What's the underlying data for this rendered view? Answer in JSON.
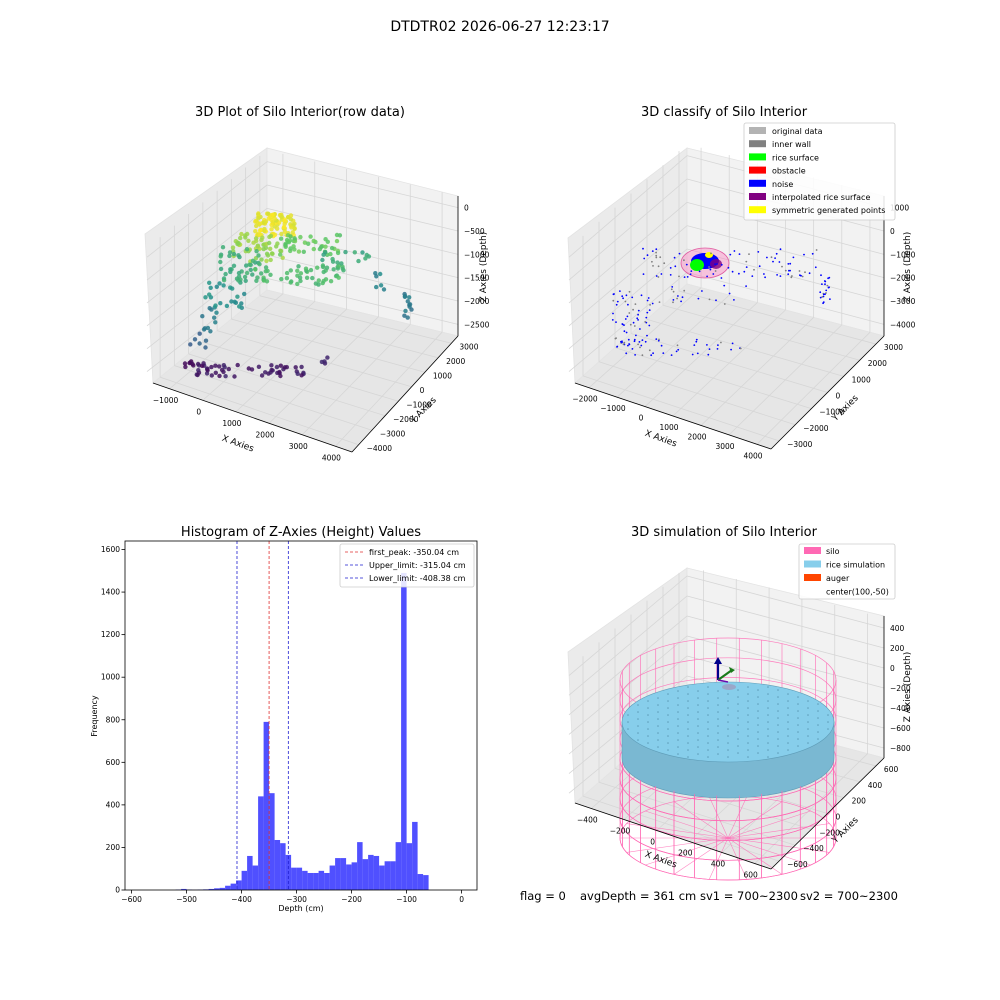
{
  "figure": {
    "suptitle": "DTDTR02 2026-06-27 12:23:17",
    "footer": {
      "flag": "flag = 0",
      "avg_depth": "avgDepth = 361 cm",
      "sv1": "sv1 = 700~2300",
      "sv2": "sv2 = 700~2300"
    }
  },
  "colors": {
    "hist_bar": "#5050ff",
    "peak_line": "#e03030",
    "limit_line": "#1f1fd0",
    "silo": "#ff69b4",
    "rice_sim": "#87ceeb",
    "auger": "#ff4500"
  },
  "chart_data": [
    {
      "type": "scatter",
      "subtype": "3d",
      "title": "3D Plot of Silo Interior(row data)",
      "xlabel": "X Axies",
      "ylabel": "Y Axies",
      "zlabel": "Z Axies (Depth)",
      "x_ticks": [
        "−1000",
        "0",
        "1000",
        "2000",
        "3000",
        "4000"
      ],
      "y_ticks": [
        "−4000",
        "−3000",
        "−2000",
        "−1000",
        "0",
        "1000",
        "2000",
        "3000"
      ],
      "z_ticks": [
        "0",
        "−500",
        "−1000",
        "−1500",
        "−2000",
        "−2500"
      ],
      "xlim": [
        -1500,
        4500
      ],
      "ylim": [
        -4200,
        3400
      ],
      "zlim": [
        -2700,
        100
      ],
      "colormap": "viridis (by depth)",
      "grid": true
    },
    {
      "type": "scatter",
      "subtype": "3d",
      "title": "3D classify of Silo Interior",
      "xlabel": "X Axies",
      "ylabel": "Y Axies",
      "zlabel": "Z Axies (Depth)",
      "x_ticks": [
        "−2000",
        "−1000",
        "0",
        "1000",
        "2000",
        "3000",
        "4000"
      ],
      "y_ticks": [
        "−3000",
        "−2000",
        "−1000",
        "0",
        "1000",
        "2000",
        "3000"
      ],
      "z_ticks": [
        "1000",
        "0",
        "−1000",
        "−2000",
        "−3000",
        "−4000"
      ],
      "legend_position": "top-right",
      "legend": [
        {
          "label": "original data",
          "color": "#b3b3b3"
        },
        {
          "label": "inner wall",
          "color": "#808080"
        },
        {
          "label": "rice surface",
          "color": "#00ff00"
        },
        {
          "label": "obstacle",
          "color": "#ff0000"
        },
        {
          "label": "noise",
          "color": "#0000ff"
        },
        {
          "label": "interpolated rice surface",
          "color": "#800080"
        },
        {
          "label": "symmetric generated points",
          "color": "#ffff00"
        }
      ],
      "grid": true
    },
    {
      "type": "bar",
      "subtype": "histogram",
      "title": "Histogram of Z-Axies (Height) Values",
      "xlabel": "Depth (cm)",
      "ylabel": "Frequency",
      "x_ticks": [
        "−600",
        "−500",
        "−400",
        "−300",
        "−200",
        "−100",
        "0"
      ],
      "y_ticks": [
        "0",
        "200",
        "400",
        "600",
        "800",
        "1000",
        "1200",
        "1400",
        "1600"
      ],
      "xlim": [
        -612,
        28
      ],
      "ylim": [
        0,
        1640
      ],
      "bin_width": 10,
      "bins_start": [
        -520,
        -510,
        -500,
        -490,
        -480,
        -470,
        -460,
        -450,
        -440,
        -430,
        -420,
        -410,
        -400,
        -390,
        -380,
        -370,
        -360,
        -350,
        -340,
        -330,
        -320,
        -310,
        -300,
        -290,
        -280,
        -270,
        -260,
        -250,
        -240,
        -230,
        -220,
        -210,
        -200,
        -190,
        -180,
        -170,
        -160,
        -150,
        -140,
        -130,
        -120,
        -110,
        -100,
        -90,
        -80,
        -70,
        -60,
        -50,
        -40,
        -30,
        -20,
        -10
      ],
      "values": [
        2,
        5,
        2,
        1,
        2,
        3,
        5,
        8,
        10,
        20,
        30,
        45,
        90,
        160,
        115,
        440,
        790,
        455,
        235,
        220,
        165,
        105,
        105,
        90,
        80,
        80,
        90,
        80,
        115,
        150,
        150,
        120,
        130,
        225,
        145,
        165,
        160,
        115,
        135,
        135,
        225,
        1490,
        220,
        320,
        75,
        70,
        0,
        0,
        0,
        0,
        0,
        0
      ],
      "vlines": [
        {
          "label": "first_peak: -350.04 cm",
          "x": -350.04,
          "color": "#e03030"
        },
        {
          "label": "Upper_limit: -315.04 cm",
          "x": -315.04,
          "color": "#1f1fd0"
        },
        {
          "label": "Lower_limit: -408.38 cm",
          "x": -408.38,
          "color": "#1f1fd0"
        }
      ],
      "legend_position": "top-right"
    },
    {
      "type": "scatter",
      "subtype": "3d-surface",
      "title": "3D simulation of Silo Interior",
      "xlabel": "X Axies",
      "ylabel": "Y Axies",
      "zlabel": "Z Axies (Depth)",
      "x_ticks": [
        "−400",
        "−200",
        "0",
        "200",
        "400",
        "600"
      ],
      "y_ticks": [
        "−600",
        "−400",
        "−200",
        "0",
        "200",
        "400",
        "600"
      ],
      "z_ticks": [
        "400",
        "200",
        "0",
        "−200",
        "−400",
        "−600",
        "−800"
      ],
      "legend_position": "top-right",
      "legend": [
        {
          "label": "silo",
          "color": "#ff69b4"
        },
        {
          "label": "rice simulation",
          "color": "#87ceeb"
        },
        {
          "label": "auger",
          "color": "#ff4500"
        },
        {
          "label": "center(100,-50)",
          "color": ""
        }
      ],
      "grid": true
    }
  ]
}
